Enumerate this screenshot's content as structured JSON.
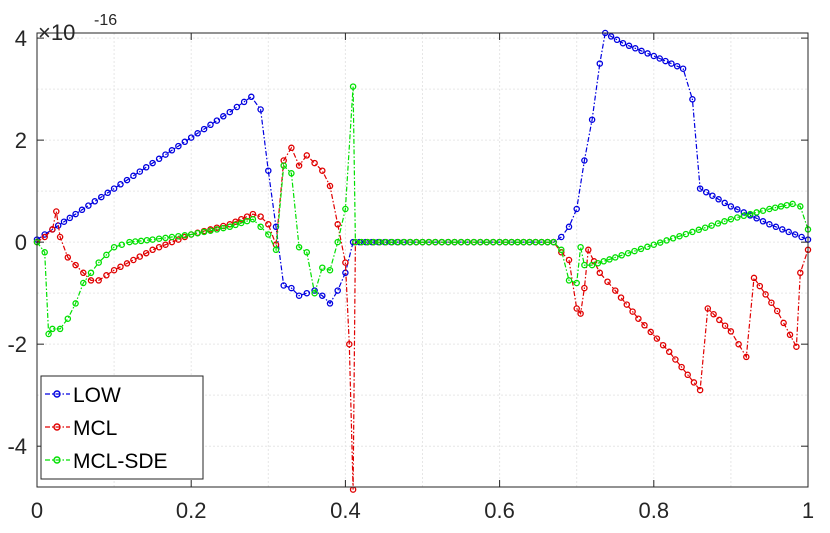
{
  "chart_data": {
    "type": "line",
    "title": "",
    "xlabel": "",
    "ylabel": "",
    "xlim": [
      0,
      1
    ],
    "ylim": [
      -4.8,
      4.1
    ],
    "y_multiplier_base": "×10",
    "y_multiplier_exponent": "-16",
    "xticks": [
      "0",
      "0.2",
      "0.4",
      "0.6",
      "0.8",
      "1"
    ],
    "xtick_values": [
      0,
      0.2,
      0.4,
      0.6,
      0.8,
      1
    ],
    "yticks": [
      "-4",
      "-2",
      "0",
      "2",
      "4"
    ],
    "ytick_values": [
      -4,
      -2,
      0,
      2,
      4
    ],
    "grid": true,
    "legend_position": "bottom-left",
    "series": [
      {
        "name": "LOW",
        "color": "#0000e0",
        "points": [
          [
            0.0,
            0.05
          ],
          [
            0.02,
            0.25
          ],
          [
            0.05,
            0.55
          ],
          [
            0.1,
            1.05
          ],
          [
            0.15,
            1.55
          ],
          [
            0.2,
            2.05
          ],
          [
            0.25,
            2.55
          ],
          [
            0.278,
            2.85
          ],
          [
            0.29,
            2.6
          ],
          [
            0.3,
            1.4
          ],
          [
            0.31,
            0.3
          ],
          [
            0.32,
            -0.85
          ],
          [
            0.33,
            -0.9
          ],
          [
            0.34,
            -1.05
          ],
          [
            0.35,
            -1.0
          ],
          [
            0.36,
            -0.95
          ],
          [
            0.37,
            -1.05
          ],
          [
            0.38,
            -1.2
          ],
          [
            0.39,
            -0.95
          ],
          [
            0.4,
            -0.6
          ],
          [
            0.41,
            0.0
          ],
          [
            0.5,
            0.0
          ],
          [
            0.6,
            0.0
          ],
          [
            0.67,
            0.0
          ],
          [
            0.68,
            0.1
          ],
          [
            0.69,
            0.3
          ],
          [
            0.7,
            0.65
          ],
          [
            0.71,
            1.6
          ],
          [
            0.72,
            2.4
          ],
          [
            0.73,
            3.5
          ],
          [
            0.737,
            4.1
          ],
          [
            0.76,
            3.9
          ],
          [
            0.8,
            3.65
          ],
          [
            0.838,
            3.4
          ],
          [
            0.85,
            2.8
          ],
          [
            0.86,
            1.05
          ],
          [
            0.9,
            0.7
          ],
          [
            0.95,
            0.35
          ],
          [
            1.0,
            0.05
          ]
        ]
      },
      {
        "name": "MCL",
        "color": "#e00000",
        "points": [
          [
            0.0,
            0.0
          ],
          [
            0.01,
            0.1
          ],
          [
            0.02,
            0.25
          ],
          [
            0.025,
            0.6
          ],
          [
            0.03,
            0.1
          ],
          [
            0.04,
            -0.3
          ],
          [
            0.05,
            -0.45
          ],
          [
            0.06,
            -0.6
          ],
          [
            0.07,
            -0.75
          ],
          [
            0.08,
            -0.75
          ],
          [
            0.1,
            -0.55
          ],
          [
            0.15,
            -0.15
          ],
          [
            0.2,
            0.15
          ],
          [
            0.25,
            0.35
          ],
          [
            0.28,
            0.55
          ],
          [
            0.29,
            0.5
          ],
          [
            0.3,
            0.35
          ],
          [
            0.31,
            -0.05
          ],
          [
            0.32,
            1.6
          ],
          [
            0.33,
            1.85
          ],
          [
            0.34,
            1.5
          ],
          [
            0.35,
            1.7
          ],
          [
            0.36,
            1.55
          ],
          [
            0.37,
            1.4
          ],
          [
            0.38,
            1.1
          ],
          [
            0.39,
            0.35
          ],
          [
            0.4,
            -0.4
          ],
          [
            0.405,
            -2.0
          ],
          [
            0.41,
            -4.85
          ],
          [
            0.413,
            0.0
          ],
          [
            0.5,
            0.0
          ],
          [
            0.6,
            0.0
          ],
          [
            0.67,
            0.0
          ],
          [
            0.68,
            -0.2
          ],
          [
            0.69,
            -0.35
          ],
          [
            0.7,
            -1.3
          ],
          [
            0.705,
            -1.4
          ],
          [
            0.71,
            -0.9
          ],
          [
            0.715,
            -0.15
          ],
          [
            0.73,
            -0.6
          ],
          [
            0.75,
            -0.95
          ],
          [
            0.78,
            -1.5
          ],
          [
            0.82,
            -2.15
          ],
          [
            0.86,
            -2.9
          ],
          [
            0.87,
            -1.3
          ],
          [
            0.9,
            -1.75
          ],
          [
            0.92,
            -2.25
          ],
          [
            0.93,
            -0.7
          ],
          [
            0.96,
            -1.35
          ],
          [
            0.985,
            -2.05
          ],
          [
            0.99,
            -0.6
          ],
          [
            1.0,
            -0.15
          ]
        ]
      },
      {
        "name": "MCL-SDE",
        "color": "#00e000",
        "points": [
          [
            0.0,
            0.0
          ],
          [
            0.01,
            -0.2
          ],
          [
            0.015,
            -1.8
          ],
          [
            0.02,
            -1.7
          ],
          [
            0.03,
            -1.7
          ],
          [
            0.04,
            -1.5
          ],
          [
            0.05,
            -1.2
          ],
          [
            0.06,
            -0.8
          ],
          [
            0.08,
            -0.4
          ],
          [
            0.1,
            -0.1
          ],
          [
            0.12,
            0.0
          ],
          [
            0.15,
            0.05
          ],
          [
            0.2,
            0.15
          ],
          [
            0.25,
            0.3
          ],
          [
            0.28,
            0.45
          ],
          [
            0.29,
            0.3
          ],
          [
            0.3,
            0.15
          ],
          [
            0.31,
            -0.15
          ],
          [
            0.32,
            1.5
          ],
          [
            0.33,
            1.35
          ],
          [
            0.34,
            -0.1
          ],
          [
            0.35,
            -0.2
          ],
          [
            0.36,
            -1.0
          ],
          [
            0.37,
            -0.5
          ],
          [
            0.38,
            -0.55
          ],
          [
            0.39,
            0.0
          ],
          [
            0.4,
            0.65
          ],
          [
            0.41,
            3.05
          ],
          [
            0.413,
            0.0
          ],
          [
            0.5,
            0.0
          ],
          [
            0.6,
            0.0
          ],
          [
            0.67,
            0.0
          ],
          [
            0.68,
            -0.15
          ],
          [
            0.69,
            -0.75
          ],
          [
            0.7,
            -0.8
          ],
          [
            0.705,
            -0.1
          ],
          [
            0.71,
            -0.45
          ],
          [
            0.72,
            -0.45
          ],
          [
            0.75,
            -0.3
          ],
          [
            0.8,
            -0.05
          ],
          [
            0.85,
            0.2
          ],
          [
            0.9,
            0.45
          ],
          [
            0.95,
            0.65
          ],
          [
            0.98,
            0.75
          ],
          [
            0.99,
            0.7
          ],
          [
            1.0,
            0.25
          ]
        ]
      }
    ]
  }
}
